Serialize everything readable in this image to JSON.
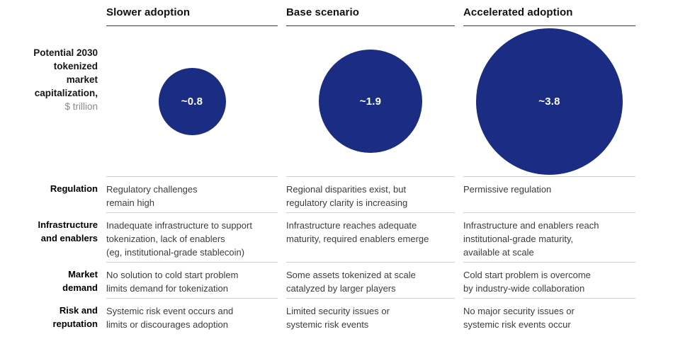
{
  "colors": {
    "bubble": "#1b2d82",
    "bubble_value_text": "#ffffff",
    "header_rule": "#3c3c3c",
    "row_rule": "#cfcfcf",
    "body_text": "#3c3c3c",
    "unit_text": "#8a8a8a"
  },
  "chart_data": {
    "type": "bubble",
    "title_lines": [
      "Potential 2030",
      "tokenized",
      "market",
      "capitalization,"
    ],
    "unit": "$ trillion",
    "categories": [
      "Slower adoption",
      "Base scenario",
      "Accelerated adoption"
    ],
    "values": [
      0.8,
      1.9,
      3.8
    ],
    "scenarios": [
      {
        "label": "Slower adoption",
        "value": 0.8,
        "value_label": "~0.8"
      },
      {
        "label": "Base scenario",
        "value": 1.9,
        "value_label": "~1.9"
      },
      {
        "label": "Accelerated adoption",
        "value": 3.8,
        "value_label": "~3.8"
      }
    ],
    "layout": {
      "bubble_area_proportional": true,
      "legend": "none",
      "grid": "off"
    }
  },
  "table": {
    "rows": [
      {
        "label_lines": [
          "Regulation"
        ],
        "cells": [
          [
            "Regulatory challenges",
            "remain high"
          ],
          [
            "Regional disparities exist, but",
            "regulatory clarity is increasing"
          ],
          [
            "Permissive regulation"
          ]
        ]
      },
      {
        "label_lines": [
          "Infrastructure",
          "and enablers"
        ],
        "cells": [
          [
            "Inadequate infrastructure to support",
            "tokenization, lack of enablers",
            "(eg, institutional-grade stablecoin)"
          ],
          [
            "Infrastructure reaches adequate",
            "maturity, required enablers emerge"
          ],
          [
            "Infrastructure and enablers reach",
            "institutional-grade maturity,",
            "available at scale"
          ]
        ]
      },
      {
        "label_lines": [
          "Market",
          "demand"
        ],
        "cells": [
          [
            "No solution to cold start problem",
            "limits demand for tokenization"
          ],
          [
            "Some assets tokenized at scale",
            "catalyzed by larger players"
          ],
          [
            "Cold start problem is overcome",
            "by industry-wide collaboration"
          ]
        ]
      },
      {
        "label_lines": [
          "Risk and",
          "reputation"
        ],
        "cells": [
          [
            "Systemic risk event occurs and",
            "limits or discourages adoption"
          ],
          [
            "Limited security issues or",
            "systemic risk events"
          ],
          [
            "No major security issues or",
            "systemic risk events occur"
          ]
        ]
      }
    ]
  }
}
